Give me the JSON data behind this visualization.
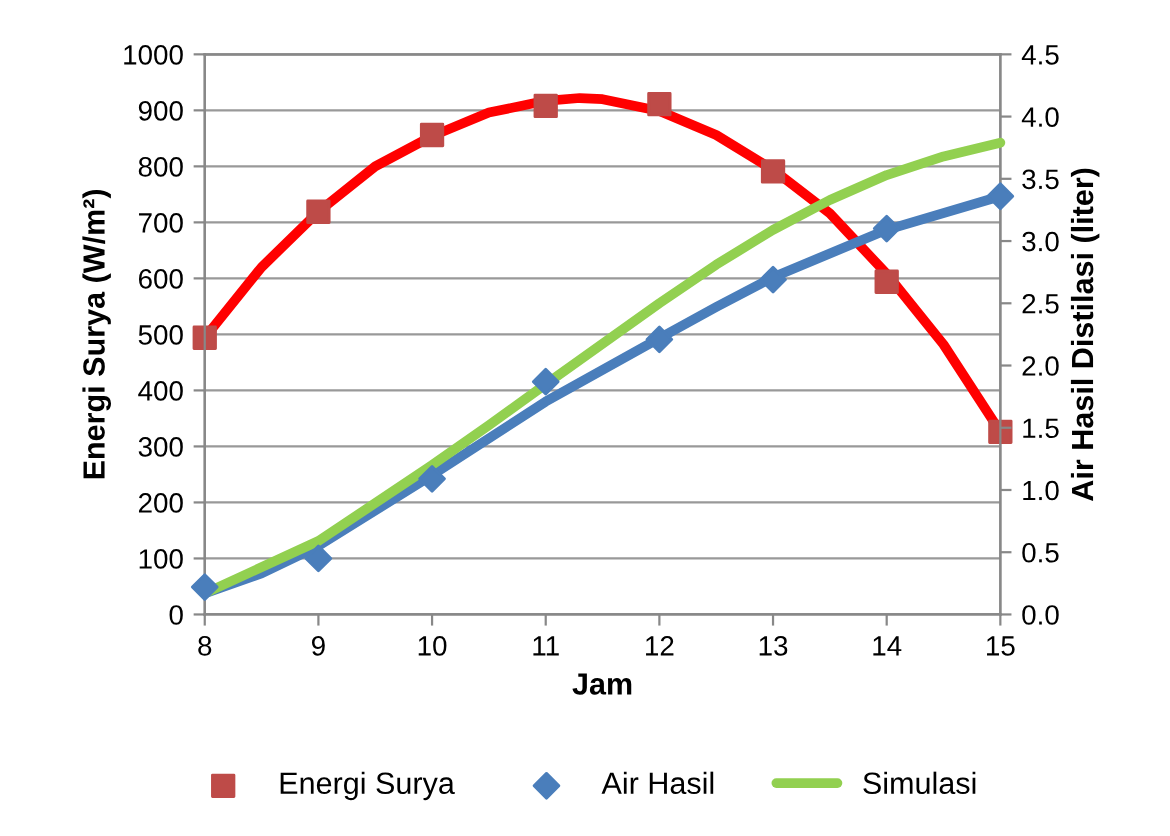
{
  "chart_data": {
    "type": "scatter",
    "xlabel": "Jam",
    "ylabel": "Energi Surya (W/m²)",
    "y2label": "Air Hasil Distilasi (liter)",
    "xlim": [
      8,
      15
    ],
    "xticks": [
      8,
      9,
      10,
      11,
      12,
      13,
      14,
      15
    ],
    "ylim": [
      0,
      1000
    ],
    "yticks": [
      0,
      100,
      200,
      300,
      400,
      500,
      600,
      700,
      800,
      900,
      1000
    ],
    "y2lim": [
      0,
      4.5
    ],
    "y2ticks": [
      {
        "value": 0,
        "label": "0.0"
      },
      {
        "value": 0.5,
        "label": "0.5"
      },
      {
        "value": 1,
        "label": "1.0"
      },
      {
        "value": 1.5,
        "label": "1.5"
      },
      {
        "value": 2,
        "label": "2.0"
      },
      {
        "value": 2.5,
        "label": "2.5"
      },
      {
        "value": 3,
        "label": "3.0"
      },
      {
        "value": 3.5,
        "label": "3.5"
      },
      {
        "value": 4,
        "label": "4.0"
      },
      {
        "value": 4.5,
        "label": "4.5"
      }
    ],
    "grid": "y",
    "legend": "bottom",
    "series": [
      {
        "type": "line",
        "color": "#ff0000",
        "x": [
          8,
          8.5,
          9,
          9.5,
          10,
          10.5,
          11,
          11.3,
          11.5,
          12,
          12.5,
          13,
          13.5,
          14,
          14.5,
          15
        ],
        "values": [
          494,
          620,
          719,
          800,
          854,
          896,
          917,
          922,
          920,
          899,
          856,
          794,
          716,
          608,
          482,
          326
        ]
      },
      {
        "type": "line",
        "axis": "y2",
        "color": "#4a7ebb",
        "x": [
          8,
          8.5,
          9,
          10,
          11,
          12,
          12.5,
          13,
          14,
          15
        ],
        "values": [
          0.17,
          0.33,
          0.55,
          1.12,
          1.71,
          2.22,
          2.47,
          2.71,
          3.09,
          3.36
        ]
      },
      {
        "name": "Energi Surya",
        "color": "#be4b48",
        "marker": "square",
        "x": [
          8,
          9,
          10,
          11,
          12,
          13,
          14,
          15
        ],
        "values": [
          494,
          719,
          856,
          908,
          911,
          791,
          594,
          326
        ]
      },
      {
        "axis": "y2",
        "name": "Air Hasil",
        "color": "#4a7ebb",
        "marker": "diamond",
        "x": [
          8,
          9,
          10,
          11,
          12,
          13,
          14,
          15
        ],
        "values": [
          0.22,
          0.45,
          1.09,
          1.87,
          2.21,
          2.69,
          3.1,
          3.36
        ]
      },
      {
        "type": "line",
        "axis": "y2",
        "name": "Simulasi",
        "color": "#92d050",
        "x": [
          8,
          9,
          10,
          10.5,
          11,
          12,
          12.5,
          13,
          13.5,
          14,
          14.5,
          15
        ],
        "values": [
          0.17,
          0.59,
          1.2,
          1.52,
          1.85,
          2.5,
          2.81,
          3.09,
          3.33,
          3.53,
          3.68,
          3.79
        ]
      }
    ]
  }
}
